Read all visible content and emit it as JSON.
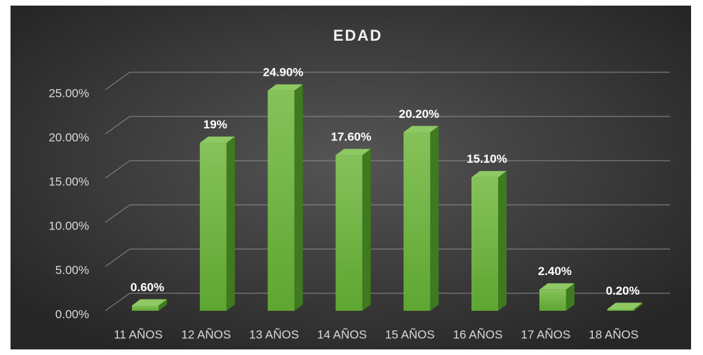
{
  "chart_data": {
    "type": "bar3d",
    "title": "EDAD",
    "categories": [
      "11 AÑOS",
      "12 AÑOS",
      "13 AÑOS",
      "14 AÑOS",
      "15 AÑOS",
      "16 AÑOS",
      "17 AÑOS",
      "18 AÑOS"
    ],
    "values": [
      0.6,
      19,
      24.9,
      17.6,
      20.2,
      15.1,
      2.4,
      0.2
    ],
    "value_labels": [
      "0.60%",
      "19%",
      "24.90%",
      "17.60%",
      "20.20%",
      "15.10%",
      "2.40%",
      "0.20%"
    ],
    "color": "#6fb33f",
    "ylim": [
      0,
      25
    ],
    "yticks": [
      {
        "value": 0,
        "label": "0.00%"
      },
      {
        "value": 5,
        "label": "5.00%"
      },
      {
        "value": 10,
        "label": "10.00%"
      },
      {
        "value": 15,
        "label": "15.00%"
      },
      {
        "value": 20,
        "label": "20.00%"
      },
      {
        "value": 25,
        "label": "25.00%"
      }
    ],
    "grid": true
  }
}
